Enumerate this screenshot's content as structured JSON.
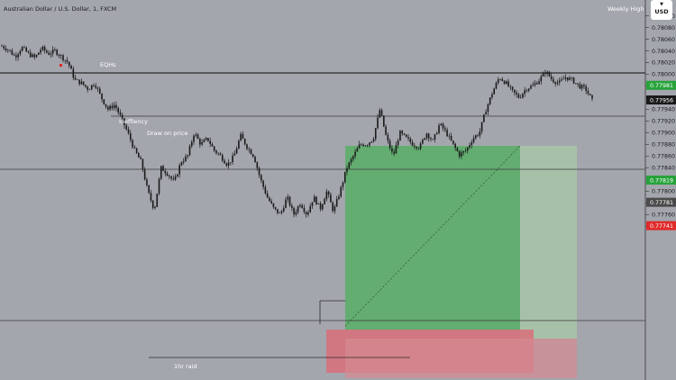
{
  "header": {
    "symbol_title": "Australian Dollar / U.S. Dollar, 1, FXCM",
    "currency": "USD",
    "currency_menu": "▼"
  },
  "colors": {
    "background": "#a3a6ad",
    "candle": "#1a1a1a",
    "profit_zone": "#5cae6a",
    "loss_zone": "#d96f7a",
    "tag_green": "#26a33a",
    "tag_red": "#e02a2a",
    "tag_dark": "#1a1a1a",
    "tag_gray": "#4a4a4a",
    "level_line": "#2a2a2a",
    "annotation_text": "#ffffff"
  },
  "chart_data": {
    "type": "candlestick",
    "title": "Australian Dollar / U.S. Dollar, 1, FXCM",
    "ylim": [
      0.7773,
      0.7812
    ],
    "price_axis_ticks": [
      "0.78100",
      "0.78080",
      "0.78060",
      "0.78040",
      "0.78020",
      "0.78000",
      "0.77980",
      "0.77960",
      "0.77940",
      "0.77920",
      "0.77900",
      "0.77880",
      "0.77860",
      "0.77840",
      "0.77820",
      "0.77800",
      "0.77780",
      "0.77760",
      "0.77740"
    ],
    "price_tags": [
      {
        "label": "0.77981",
        "price": 0.77981,
        "color": "#26a33a"
      },
      {
        "label": "0.77956",
        "price": 0.77956,
        "color": "#1a1a1a"
      },
      {
        "label": "0.77819",
        "price": 0.77819,
        "color": "#26a33a"
      },
      {
        "label": "0.77781",
        "price": 0.77781,
        "color": "#4a4a4a"
      },
      {
        "label": "0.77741",
        "price": 0.77741,
        "color": "#e02a2a"
      }
    ],
    "horizontal_levels": [
      {
        "name": "eqhs",
        "price": 0.78058
      },
      {
        "name": "inefficiency",
        "price": 0.78013
      },
      {
        "name": "current-price",
        "price": 0.77956
      },
      {
        "name": "weekly-high",
        "price": 0.77799
      }
    ],
    "labels": {
      "eqhs": "EQHs",
      "inefficiency": "Ineffiency",
      "draw_on_price": "Draw on price",
      "raid": "1hr raid",
      "weekly_high": "Weekly High"
    },
    "anchors": [
      0.78048,
      0.78042,
      0.7803,
      0.78046,
      0.78035,
      0.78028,
      0.78045,
      0.78035,
      0.7804,
      0.7803,
      0.7802,
      0.7799,
      0.77985,
      0.77975,
      0.77985,
      0.7796,
      0.7794,
      0.77948,
      0.77925,
      0.779,
      0.7787,
      0.7785,
      0.778,
      0.77768,
      0.7784,
      0.7783,
      0.77815,
      0.7785,
      0.7786,
      0.779,
      0.7788,
      0.7789,
      0.7787,
      0.7786,
      0.77845,
      0.7786,
      0.77895,
      0.77875,
      0.7786,
      0.7782,
      0.7779,
      0.7777,
      0.7776,
      0.7779,
      0.7776,
      0.7778,
      0.7776,
      0.7779,
      0.7777,
      0.778,
      0.77765,
      0.778,
      0.7784,
      0.7786,
      0.7788,
      0.7788,
      0.7789,
      0.7794,
      0.7789,
      0.7786,
      0.779,
      0.7789,
      0.7788,
      0.77875,
      0.779,
      0.77885,
      0.77915,
      0.779,
      0.7788,
      0.77862,
      0.7787,
      0.7789,
      0.779,
      0.7794,
      0.7797,
      0.77995,
      0.77985,
      0.7797,
      0.7796,
      0.77975,
      0.7798,
      0.7799,
      0.78005,
      0.7799,
      0.77985,
      0.77995,
      0.7799,
      0.7798,
      0.77975,
      0.77955
    ]
  }
}
